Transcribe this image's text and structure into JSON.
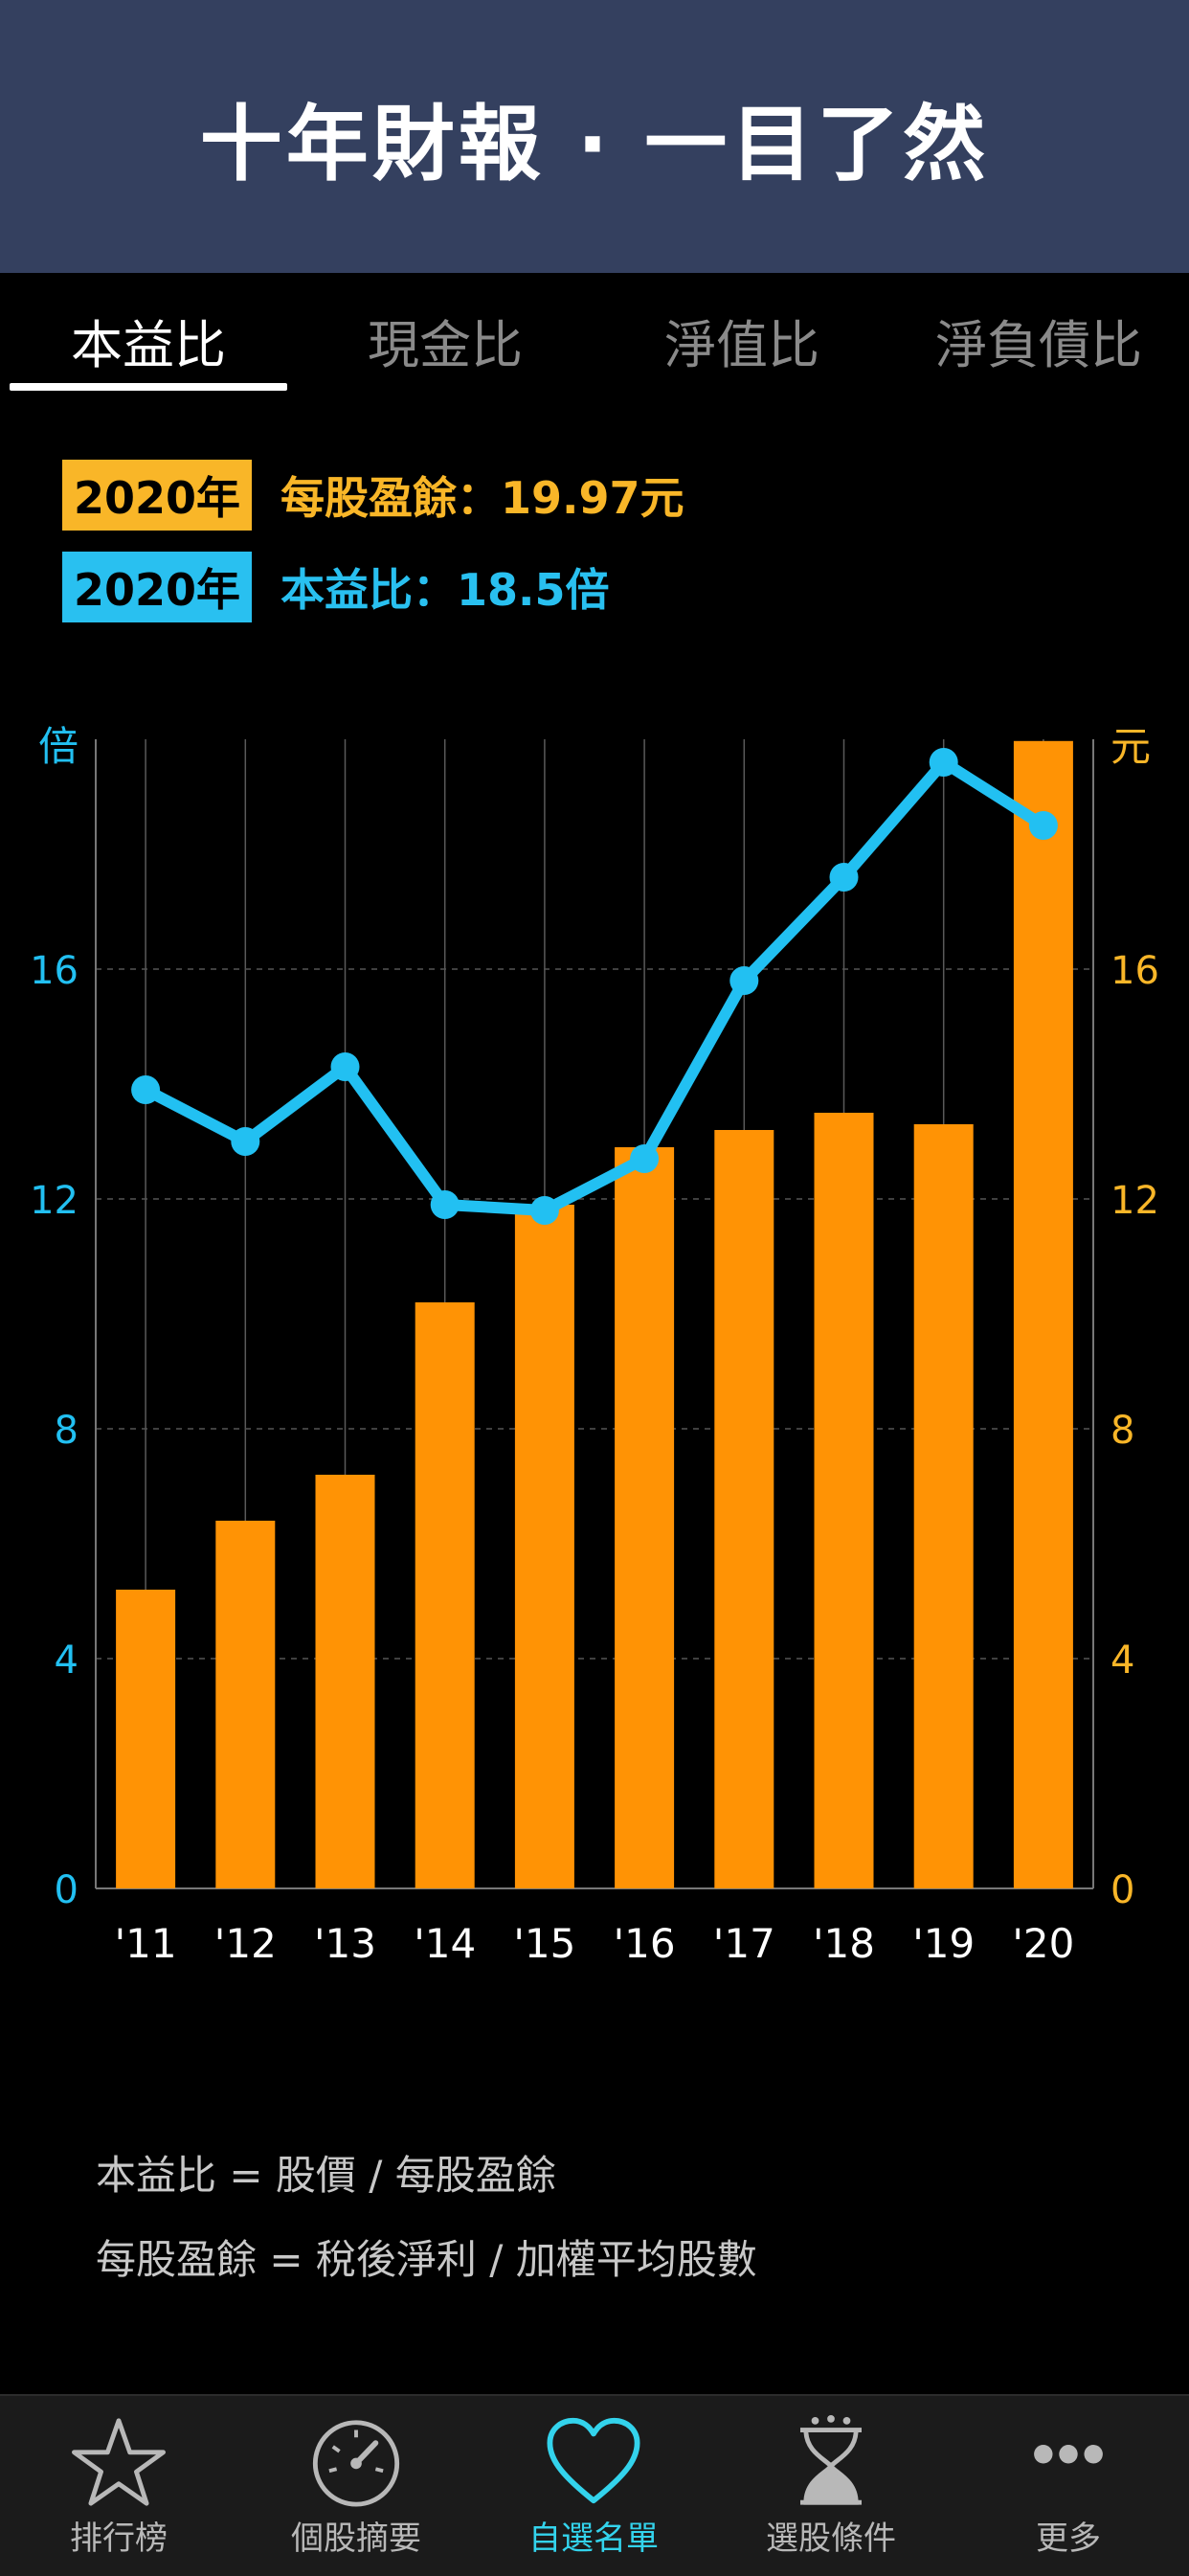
{
  "header": {
    "title": "十年財報 · 一目了然"
  },
  "tabs": [
    {
      "label": "本益比",
      "active": true
    },
    {
      "label": "現金比",
      "active": false
    },
    {
      "label": "淨值比",
      "active": false
    },
    {
      "label": "淨負債比",
      "active": false
    }
  ],
  "info": {
    "eps": {
      "year": "2020年",
      "text": "每股盈餘：19.97元"
    },
    "pe": {
      "year": "2020年",
      "text": "本益比：18.5倍"
    }
  },
  "chart_data": {
    "type": "bar",
    "categories": [
      "'11",
      "'12",
      "'13",
      "'14",
      "'15",
      "'16",
      "'17",
      "'18",
      "'19",
      "'20"
    ],
    "series": [
      {
        "name": "每股盈餘",
        "type": "bar",
        "axis": "right",
        "color": "#ff9305",
        "values": [
          5.2,
          6.4,
          7.2,
          10.2,
          11.9,
          12.9,
          13.2,
          13.5,
          13.3,
          19.97
        ]
      },
      {
        "name": "本益比",
        "type": "line",
        "axis": "left",
        "color": "#22c0f2",
        "values": [
          13.9,
          13.0,
          14.3,
          11.9,
          11.8,
          12.7,
          15.8,
          17.6,
          19.6,
          18.5
        ]
      }
    ],
    "ylabel": "倍",
    "y2label": "元",
    "ylim": [
      0,
      20
    ],
    "yticks": [
      "0",
      "4",
      "8",
      "12",
      "16"
    ],
    "grid": true
  },
  "formulas": [
    "本益比 = 股價 / 每股盈餘",
    "每股盈餘 = 稅後淨利 / 加權平均股數"
  ],
  "tabbar": [
    {
      "label": "排行榜",
      "icon": "star-icon",
      "active": false
    },
    {
      "label": "個股摘要",
      "icon": "gauge-icon",
      "active": false
    },
    {
      "label": "自選名單",
      "icon": "heart-icon",
      "active": true
    },
    {
      "label": "選股條件",
      "icon": "hourglass-icon",
      "active": false
    },
    {
      "label": "更多",
      "icon": "more-dots-icon",
      "active": false
    }
  ],
  "colors": {
    "accent_blue": "#22c0f2",
    "accent_orange": "#ff9305",
    "header_bg": "#34405f"
  }
}
